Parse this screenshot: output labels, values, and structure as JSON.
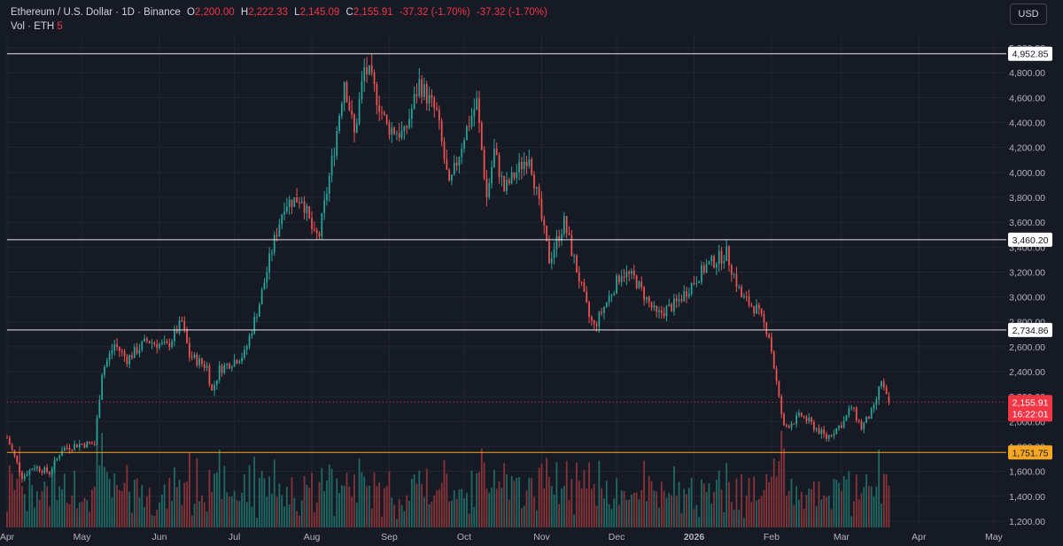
{
  "header": {
    "symbol_title": "Ethereum / U.S. Dollar · 1D · Binance",
    "open_label": "O",
    "open_value": "2,200.00",
    "high_label": "H",
    "high_value": "2,222.33",
    "low_label": "L",
    "low_value": "2,145.09",
    "close_label": "C",
    "close_value": "2,155.91",
    "change_value": "-37.32 (-1.70%)",
    "change_value_2": "-37.32 (-1.70%)",
    "volume_label": "Vol · ETH",
    "volume_value": "5"
  },
  "toolbar": {
    "currency_label": "USD"
  },
  "colors": {
    "background": "#161a25",
    "up": "#26a69a",
    "down": "#ef5350",
    "up_volume": "#1f6b65",
    "down_volume": "#8a3438",
    "grid": "#222632",
    "line_white": "#e6e6e6",
    "line_orange": "#f5a623",
    "last_price": "#f23645"
  },
  "chart_data": {
    "type": "candlestick",
    "title": "Ethereum / U.S. Dollar · 1D · Binance",
    "ylim": [
      1150,
      5100
    ],
    "y_ticks": [
      1200,
      1400,
      1600,
      1800,
      2000,
      2200,
      2400,
      2600,
      2800,
      3000,
      3200,
      3400,
      3600,
      3800,
      4000,
      4200,
      4400,
      4600,
      4800,
      5000
    ],
    "x_ticks": [
      {
        "label": "Apr",
        "date": "2025-04-01"
      },
      {
        "label": "May",
        "date": "2025-05-01"
      },
      {
        "label": "Jun",
        "date": "2025-06-01"
      },
      {
        "label": "Jul",
        "date": "2025-07-01"
      },
      {
        "label": "Aug",
        "date": "2025-08-01"
      },
      {
        "label": "Sep",
        "date": "2025-09-01"
      },
      {
        "label": "Oct",
        "date": "2025-10-01"
      },
      {
        "label": "Nov",
        "date": "2025-11-01"
      },
      {
        "label": "Dec",
        "date": "2025-12-01"
      },
      {
        "label": "2026",
        "date": "2026-01-01"
      },
      {
        "label": "Feb",
        "date": "2026-02-01"
      },
      {
        "label": "Mar",
        "date": "2026-03-01"
      },
      {
        "label": "Apr",
        "date": "2026-04-01"
      },
      {
        "label": "May",
        "date": "2026-05-01"
      }
    ],
    "x_range": [
      "2025-04-01",
      "2026-05-06"
    ],
    "start_date": "2025-04-01",
    "horizontal_lines": [
      {
        "price": 4952.85,
        "label": "4,952.85",
        "color": "white"
      },
      {
        "price": 3460.2,
        "label": "3,460.20",
        "color": "white"
      },
      {
        "price": 2734.86,
        "label": "2,734.86",
        "color": "white"
      },
      {
        "price": 1751.75,
        "label": "1,751.75",
        "color": "orange"
      }
    ],
    "last_price": {
      "price": 2155.91,
      "label": "2,155.91",
      "countdown": "16:22:01"
    },
    "close_anchors": [
      {
        "date": "2025-04-01",
        "close": 1870
      },
      {
        "date": "2025-04-07",
        "close": 1560
      },
      {
        "date": "2025-04-12",
        "close": 1640
      },
      {
        "date": "2025-04-18",
        "close": 1590
      },
      {
        "date": "2025-04-23",
        "close": 1780
      },
      {
        "date": "2025-04-30",
        "close": 1820
      },
      {
        "date": "2025-05-06",
        "close": 1820
      },
      {
        "date": "2025-05-09",
        "close": 2400
      },
      {
        "date": "2025-05-14",
        "close": 2620
      },
      {
        "date": "2025-05-19",
        "close": 2500
      },
      {
        "date": "2025-05-27",
        "close": 2650
      },
      {
        "date": "2025-06-04",
        "close": 2600
      },
      {
        "date": "2025-06-10",
        "close": 2800
      },
      {
        "date": "2025-06-13",
        "close": 2530
      },
      {
        "date": "2025-06-20",
        "close": 2440
      },
      {
        "date": "2025-06-22",
        "close": 2240
      },
      {
        "date": "2025-06-25",
        "close": 2420
      },
      {
        "date": "2025-07-05",
        "close": 2540
      },
      {
        "date": "2025-07-11",
        "close": 2950
      },
      {
        "date": "2025-07-16",
        "close": 3380
      },
      {
        "date": "2025-07-21",
        "close": 3750
      },
      {
        "date": "2025-07-28",
        "close": 3800
      },
      {
        "date": "2025-08-02",
        "close": 3480
      },
      {
        "date": "2025-08-04",
        "close": 3500
      },
      {
        "date": "2025-08-10",
        "close": 4200
      },
      {
        "date": "2025-08-14",
        "close": 4750
      },
      {
        "date": "2025-08-18",
        "close": 4300
      },
      {
        "date": "2025-08-22",
        "close": 4830
      },
      {
        "date": "2025-08-24",
        "close": 4780
      },
      {
        "date": "2025-08-31",
        "close": 4370
      },
      {
        "date": "2025-09-07",
        "close": 4300
      },
      {
        "date": "2025-09-13",
        "close": 4720
      },
      {
        "date": "2025-09-20",
        "close": 4470
      },
      {
        "date": "2025-09-25",
        "close": 3870
      },
      {
        "date": "2025-10-01",
        "close": 4300
      },
      {
        "date": "2025-10-06",
        "close": 4560
      },
      {
        "date": "2025-10-10",
        "close": 3800
      },
      {
        "date": "2025-10-13",
        "close": 4170
      },
      {
        "date": "2025-10-17",
        "close": 3860
      },
      {
        "date": "2025-10-27",
        "close": 4150
      },
      {
        "date": "2025-11-04",
        "close": 3300
      },
      {
        "date": "2025-11-10",
        "close": 3600
      },
      {
        "date": "2025-11-20",
        "close": 2840
      },
      {
        "date": "2025-11-22",
        "close": 2760
      },
      {
        "date": "2025-12-03",
        "close": 3200
      },
      {
        "date": "2025-12-08",
        "close": 3150
      },
      {
        "date": "2025-12-17",
        "close": 2850
      },
      {
        "date": "2025-12-25",
        "close": 2950
      },
      {
        "date": "2026-01-06",
        "close": 3250
      },
      {
        "date": "2026-01-14",
        "close": 3350
      },
      {
        "date": "2026-01-20",
        "close": 3000
      },
      {
        "date": "2026-01-26",
        "close": 2900
      },
      {
        "date": "2026-01-31",
        "close": 2700
      },
      {
        "date": "2026-02-04",
        "close": 2180
      },
      {
        "date": "2026-02-06",
        "close": 1950
      },
      {
        "date": "2026-02-13",
        "close": 2050
      },
      {
        "date": "2026-02-23",
        "close": 1870
      },
      {
        "date": "2026-03-02",
        "close": 2000
      },
      {
        "date": "2026-03-05",
        "close": 2120
      },
      {
        "date": "2026-03-09",
        "close": 1950
      },
      {
        "date": "2026-03-14",
        "close": 2100
      },
      {
        "date": "2026-03-17",
        "close": 2330
      },
      {
        "date": "2026-03-19",
        "close": 2193
      },
      {
        "date": "2026-03-20",
        "close": 2155.91
      }
    ]
  }
}
